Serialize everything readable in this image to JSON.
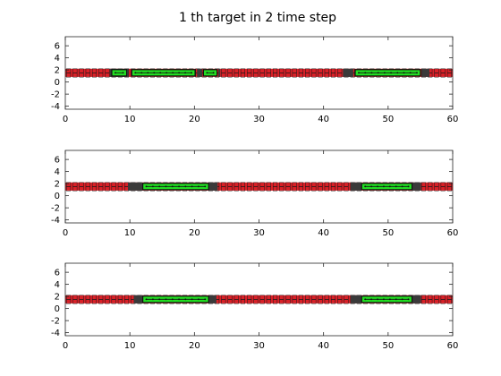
{
  "figure": {
    "title": "1 th target in 2 time step"
  },
  "colors": {
    "background": "#ffffff",
    "axes_edge": "#262626",
    "strip_fill": "#d92027",
    "grid_square": "#1a1a1a",
    "target_fill": "#22dd22",
    "target_edge": "#111111",
    "gap_fill": "#3a3a3a"
  },
  "chart_data": [
    {
      "type": "scatter",
      "title": "",
      "xlim": [
        0,
        60
      ],
      "ylim": [
        -4.5,
        7.5
      ],
      "xticks": [
        0,
        10,
        20,
        30,
        40,
        50,
        60
      ],
      "yticks": [
        -4,
        -2,
        0,
        2,
        4,
        6
      ],
      "strip": {
        "x": [
          0,
          60
        ],
        "y": [
          0.85,
          2.2
        ]
      },
      "dark_segments": [
        [
          6.9,
          9.8
        ],
        [
          20.4,
          21.2
        ],
        [
          23.7,
          24.0
        ],
        [
          43.0,
          44.6
        ],
        [
          55.2,
          56.4
        ]
      ],
      "targets": [
        {
          "x": [
            7.2,
            9.5
          ],
          "y": [
            1.0,
            2.05
          ]
        },
        {
          "x": [
            10.3,
            20.1
          ],
          "y": [
            1.0,
            2.05
          ]
        },
        {
          "x": [
            21.4,
            23.5
          ],
          "y": [
            1.0,
            2.05
          ]
        },
        {
          "x": [
            44.9,
            55.0
          ],
          "y": [
            1.0,
            2.05
          ]
        }
      ]
    },
    {
      "type": "scatter",
      "title": "",
      "xlim": [
        0,
        60
      ],
      "ylim": [
        -4.5,
        7.5
      ],
      "xticks": [
        0,
        10,
        20,
        30,
        40,
        50,
        60
      ],
      "yticks": [
        -4,
        -2,
        0,
        2,
        4,
        6
      ],
      "strip": {
        "x": [
          0,
          60
        ],
        "y": [
          0.85,
          2.2
        ]
      },
      "dark_segments": [
        [
          9.7,
          12.0
        ],
        [
          22.2,
          23.6
        ],
        [
          44.2,
          45.9
        ],
        [
          53.7,
          55.1
        ]
      ],
      "targets": [
        {
          "x": [
            12.0,
            22.2
          ],
          "y": [
            1.0,
            2.05
          ]
        },
        {
          "x": [
            45.9,
            53.7
          ],
          "y": [
            1.0,
            2.05
          ]
        }
      ]
    },
    {
      "type": "scatter",
      "title": "",
      "xlim": [
        0,
        60
      ],
      "ylim": [
        -4.5,
        7.5
      ],
      "xticks": [
        0,
        10,
        20,
        30,
        40,
        50,
        60
      ],
      "yticks": [
        -4,
        -2,
        0,
        2,
        4,
        6
      ],
      "strip": {
        "x": [
          0,
          60
        ],
        "y": [
          0.85,
          2.2
        ]
      },
      "dark_segments": [
        [
          10.6,
          12.0
        ],
        [
          22.2,
          23.4
        ],
        [
          44.2,
          45.9
        ],
        [
          53.7,
          55.1
        ]
      ],
      "targets": [
        {
          "x": [
            12.0,
            22.2
          ],
          "y": [
            1.0,
            2.05
          ]
        },
        {
          "x": [
            45.9,
            53.7
          ],
          "y": [
            1.0,
            2.05
          ]
        }
      ]
    }
  ]
}
